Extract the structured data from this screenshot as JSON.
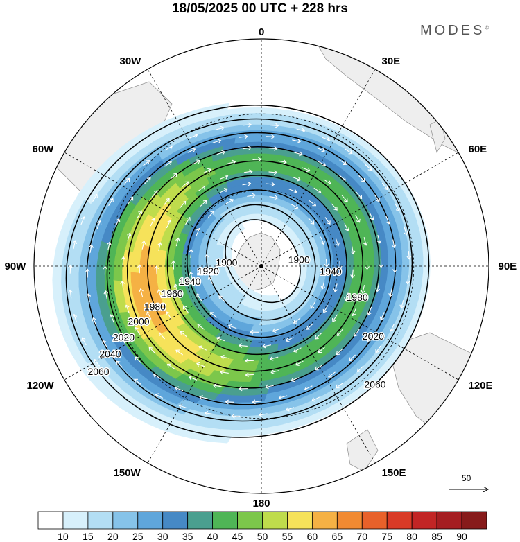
{
  "title": "18/05/2025  00 UTC  + 228 hrs",
  "brand": "MODES",
  "brand_mark": "©",
  "longitude_labels": [
    {
      "lon": 0,
      "text": "0"
    },
    {
      "lon": 30,
      "text": "30E"
    },
    {
      "lon": 60,
      "text": "60E"
    },
    {
      "lon": 90,
      "text": "90E"
    },
    {
      "lon": 120,
      "text": "120E"
    },
    {
      "lon": 150,
      "text": "150E"
    },
    {
      "lon": 180,
      "text": "180"
    },
    {
      "lon": -150,
      "text": "150W"
    },
    {
      "lon": -120,
      "text": "120W"
    },
    {
      "lon": -90,
      "text": "90W"
    },
    {
      "lon": -60,
      "text": "60W"
    },
    {
      "lon": -30,
      "text": "30W"
    }
  ],
  "contours": [
    {
      "value": 1900,
      "label": "1900"
    },
    {
      "value": 1920,
      "label": "1920"
    },
    {
      "value": 1940,
      "label": "1940"
    },
    {
      "value": 1960,
      "label": "1960"
    },
    {
      "value": 1980,
      "label": "1980"
    },
    {
      "value": 2000,
      "label": "2000"
    },
    {
      "value": 2020,
      "label": "2020"
    },
    {
      "value": 2040,
      "label": "2040"
    },
    {
      "value": 2060,
      "label": "2060"
    }
  ],
  "colorbar": {
    "ticks": [
      "10",
      "15",
      "20",
      "25",
      "30",
      "35",
      "40",
      "45",
      "50",
      "55",
      "60",
      "65",
      "70",
      "75",
      "80",
      "85",
      "90"
    ],
    "colors": [
      "#ffffff",
      "#d7f0fb",
      "#b3def4",
      "#86c3e9",
      "#5fa6db",
      "#4689c5",
      "#4a9f8f",
      "#4fb556",
      "#7cc74b",
      "#bfdc4c",
      "#f6e25a",
      "#f5b144",
      "#f18a32",
      "#e8612a",
      "#d93a26",
      "#c22525",
      "#a51d21",
      "#871a1a"
    ]
  },
  "reference_vector": {
    "value": "50"
  }
}
